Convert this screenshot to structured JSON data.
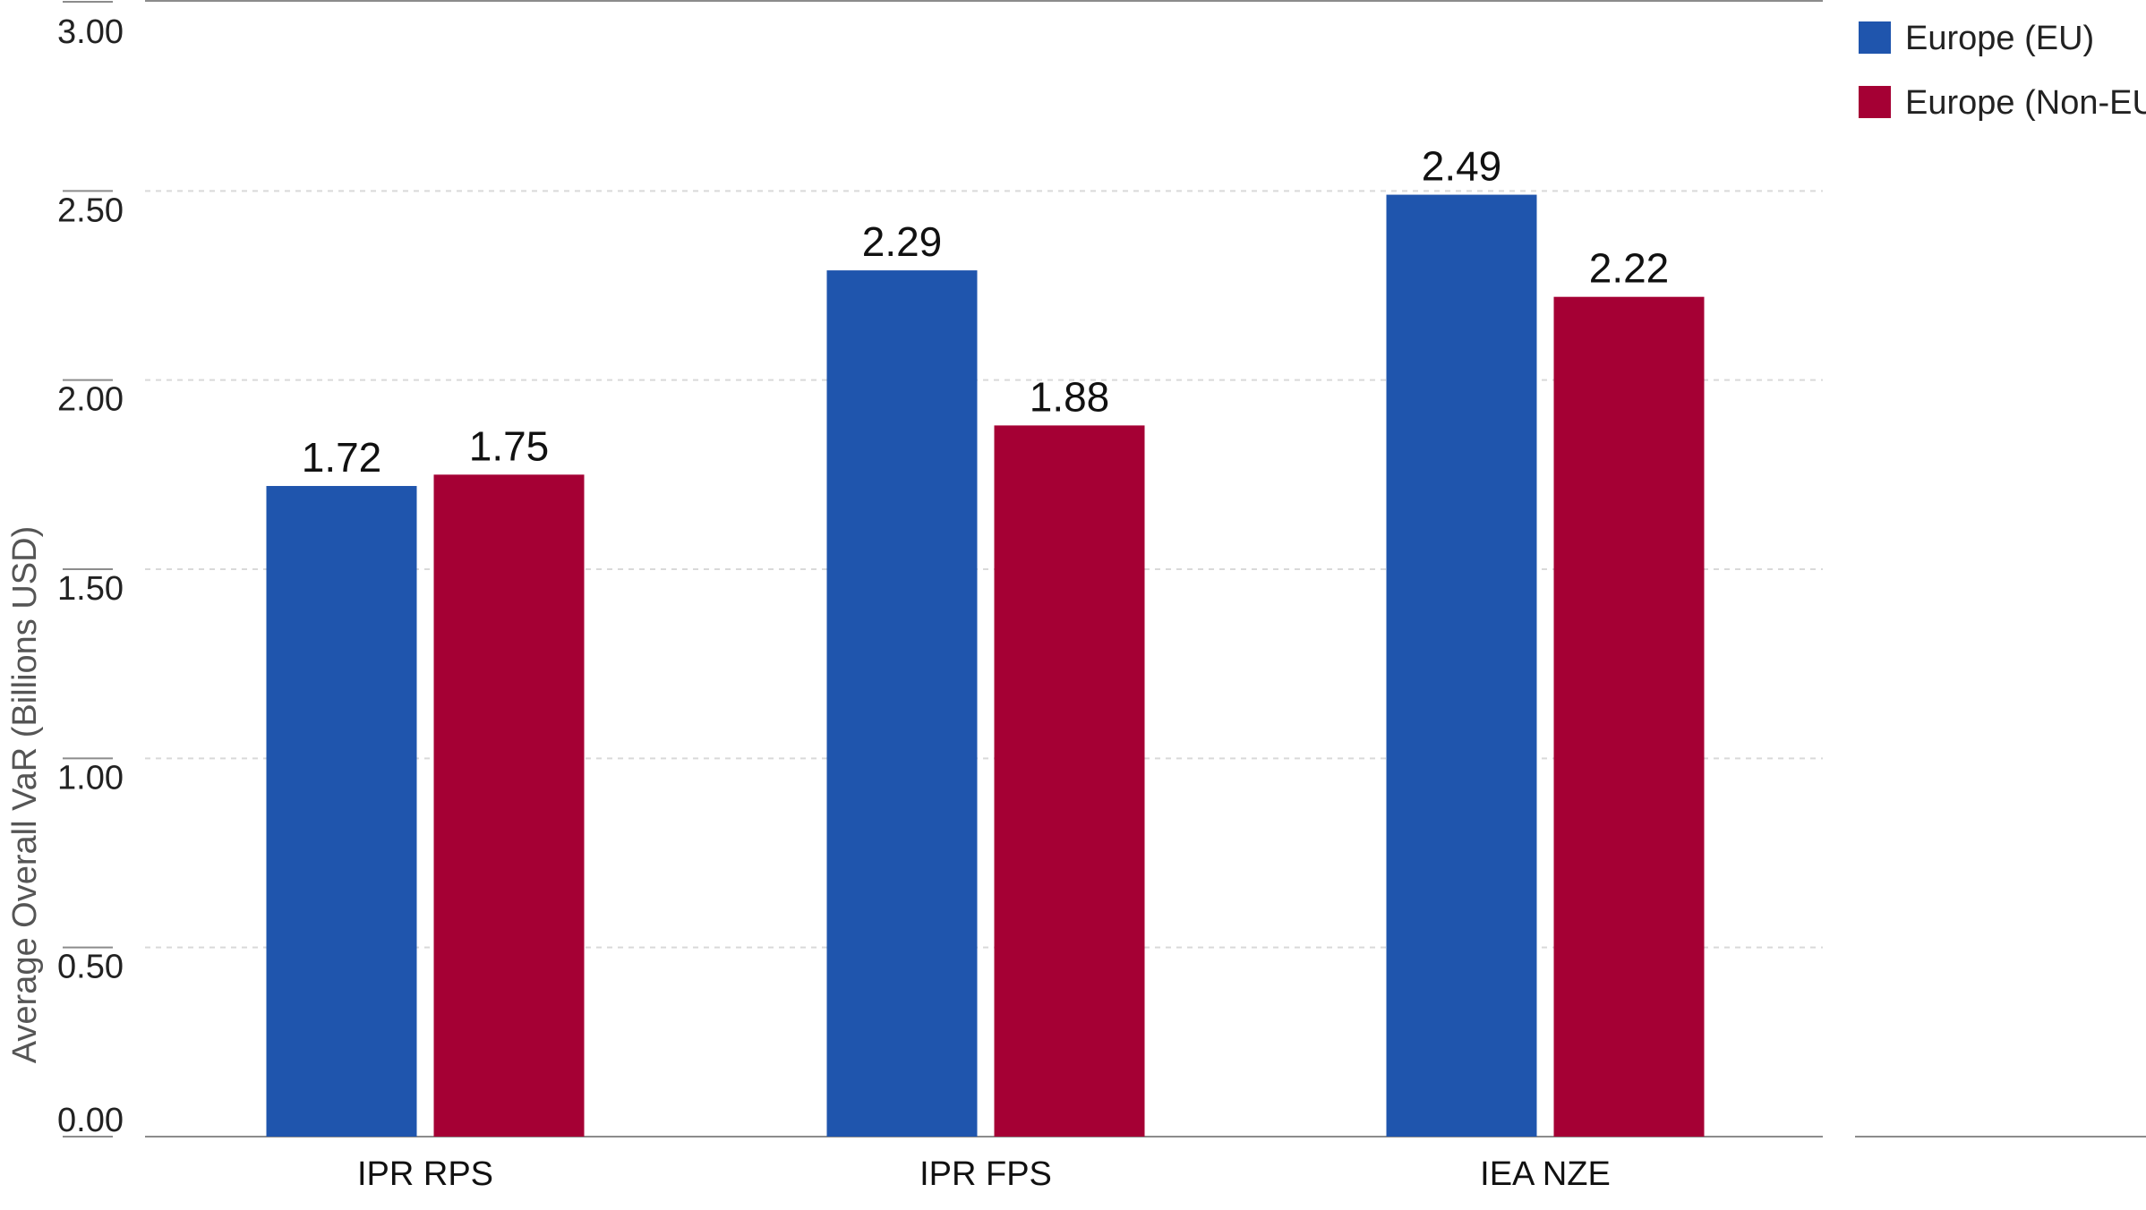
{
  "chart_data": {
    "type": "bar",
    "title": "",
    "xlabel": "",
    "ylabel": "Average Overall VaR (Billions USD)",
    "ylim": [
      0,
      3
    ],
    "yticks": [
      "0.00",
      "0.50",
      "1.00",
      "1.50",
      "2.00",
      "2.50",
      "3.00"
    ],
    "ytick_values": [
      0,
      0.5,
      1,
      1.5,
      2,
      2.5,
      3
    ],
    "categories": [
      "IPR RPS",
      "IPR FPS",
      "IEA NZE"
    ],
    "series": [
      {
        "name": "Europe (EU)",
        "color": "#1f55ad",
        "values": [
          1.72,
          2.29,
          2.49
        ],
        "labels": [
          "1.72",
          "2.29",
          "2.49"
        ]
      },
      {
        "name": "Europe (Non-EU)",
        "color": "#a50034",
        "values": [
          1.75,
          1.88,
          2.22
        ],
        "labels": [
          "1.75",
          "1.88",
          "2.22"
        ]
      }
    ],
    "grid": true,
    "legend_position": "top-right",
    "colors": {
      "grid": "#d9d9d9",
      "axis": "#8c8c8c"
    }
  }
}
